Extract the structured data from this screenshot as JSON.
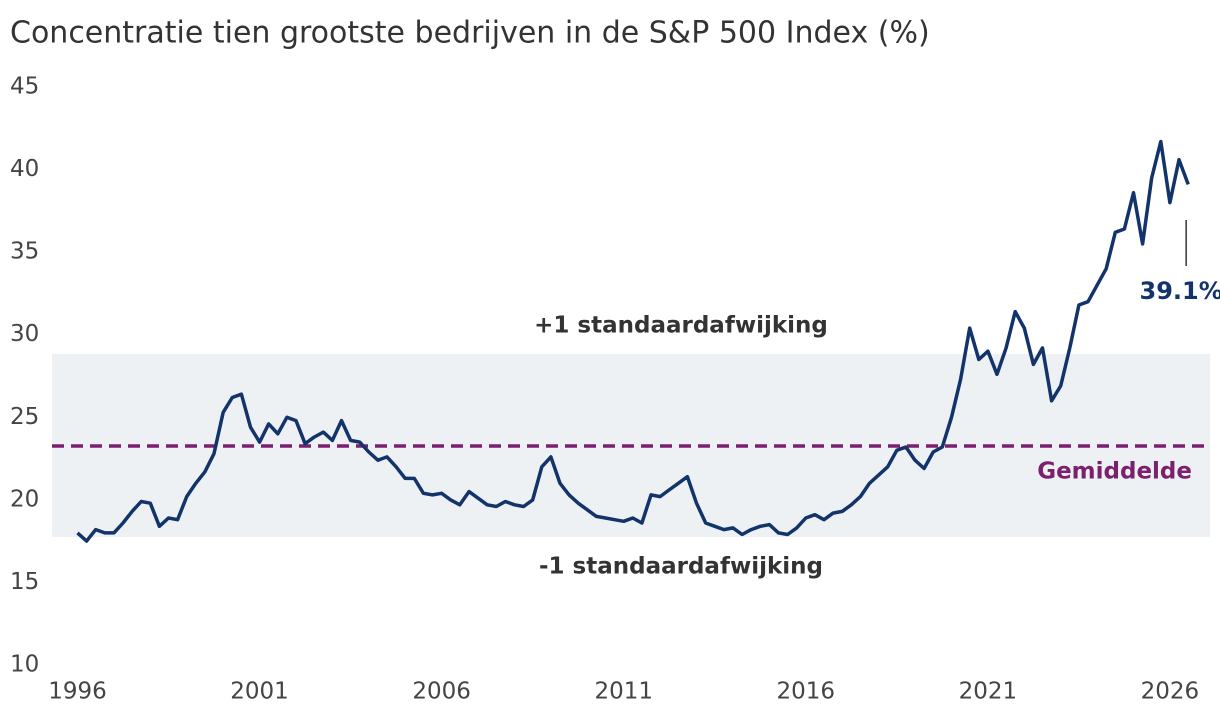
{
  "chart_data": {
    "type": "line",
    "title": "Concentratie tien grootste bedrijven in de S&P 500 Index (%)",
    "x": [
      1996,
      1996.25,
      1996.5,
      1996.75,
      1997,
      1997.25,
      1997.5,
      1997.75,
      1998,
      1998.25,
      1998.5,
      1998.75,
      1999,
      1999.25,
      1999.5,
      1999.75,
      2000,
      2000.25,
      2000.5,
      2000.75,
      2001,
      2001.25,
      2001.5,
      2001.75,
      2002,
      2002.25,
      2002.5,
      2002.75,
      2003,
      2003.25,
      2003.5,
      2003.75,
      2004,
      2004.25,
      2004.5,
      2004.75,
      2005,
      2005.25,
      2005.5,
      2005.75,
      2006,
      2006.25,
      2006.5,
      2006.75,
      2007,
      2007.25,
      2007.5,
      2007.75,
      2008,
      2008.25,
      2008.5,
      2008.75,
      2009,
      2009.25,
      2009.5,
      2009.75,
      2010,
      2010.25,
      2010.5,
      2010.75,
      2011,
      2011.25,
      2011.5,
      2011.75,
      2012,
      2012.25,
      2012.5,
      2012.75,
      2013,
      2013.25,
      2013.5,
      2013.75,
      2014,
      2014.25,
      2014.5,
      2014.75,
      2015,
      2015.25,
      2015.5,
      2015.75,
      2016,
      2016.25,
      2016.5,
      2016.75,
      2017,
      2017.25,
      2017.5,
      2017.75,
      2018,
      2018.25,
      2018.5,
      2018.75,
      2019,
      2019.25,
      2019.5,
      2019.75,
      2020,
      2020.25,
      2020.5,
      2020.75,
      2021,
      2021.25,
      2021.5,
      2021.75,
      2022,
      2022.25,
      2022.5,
      2022.75,
      2023,
      2023.25,
      2023.5,
      2023.75,
      2024,
      2024.25,
      2024.5,
      2024.75,
      2025,
      2025.25,
      2025.5,
      2025.75,
      2026,
      2026.25,
      2026.5
    ],
    "values": [
      18.0,
      17.5,
      18.2,
      18.0,
      18.0,
      18.6,
      19.3,
      19.9,
      19.8,
      18.4,
      18.9,
      18.8,
      20.2,
      21.0,
      21.7,
      22.8,
      25.3,
      26.2,
      26.4,
      24.4,
      23.5,
      24.6,
      24.0,
      25.0,
      24.8,
      23.4,
      23.8,
      24.1,
      23.6,
      24.8,
      23.6,
      23.5,
      22.9,
      22.4,
      22.6,
      22.0,
      21.3,
      21.3,
      20.4,
      20.3,
      20.4,
      20.0,
      19.7,
      20.5,
      20.1,
      19.7,
      19.6,
      19.9,
      19.7,
      19.6,
      20.0,
      22.0,
      22.6,
      21.0,
      20.3,
      19.8,
      19.4,
      19.0,
      18.9,
      18.8,
      18.7,
      18.9,
      18.6,
      20.3,
      20.2,
      20.6,
      21.0,
      21.4,
      19.8,
      18.6,
      18.4,
      18.2,
      18.3,
      17.9,
      18.2,
      18.4,
      18.5,
      18.0,
      17.9,
      18.3,
      18.9,
      19.1,
      18.8,
      19.2,
      19.3,
      19.7,
      20.2,
      21.0,
      21.5,
      22.0,
      23.0,
      23.2,
      22.4,
      21.9,
      22.9,
      23.2,
      25.0,
      27.3,
      30.4,
      28.5,
      29.0,
      27.6,
      29.2,
      31.4,
      30.4,
      28.2,
      29.2,
      26.0,
      26.9,
      29.2,
      31.8,
      32.0,
      33.0,
      34.0,
      36.2,
      36.4,
      38.6,
      35.5,
      39.5,
      41.7,
      38.0,
      40.6,
      39.1
    ],
    "color": "#13336b",
    "last_value_label": "39.1%",
    "band": {
      "upper": 28.84,
      "lower": 17.75,
      "color": "#eef1f3",
      "upper_label": "+1 standaardafwijking",
      "lower_label": "-1 standaardafwijking"
    },
    "mean": {
      "value": 23.26,
      "label": "Gemiddelde",
      "color": "#7b1f6f"
    },
    "xlim": [
      1995.3,
      2027.1
    ],
    "xticks": [
      1996,
      2001,
      2006,
      2011,
      2016,
      2021,
      2026
    ],
    "ylim": [
      10,
      45
    ],
    "yticks": [
      10,
      15,
      20,
      25,
      30,
      35,
      40,
      45
    ]
  }
}
